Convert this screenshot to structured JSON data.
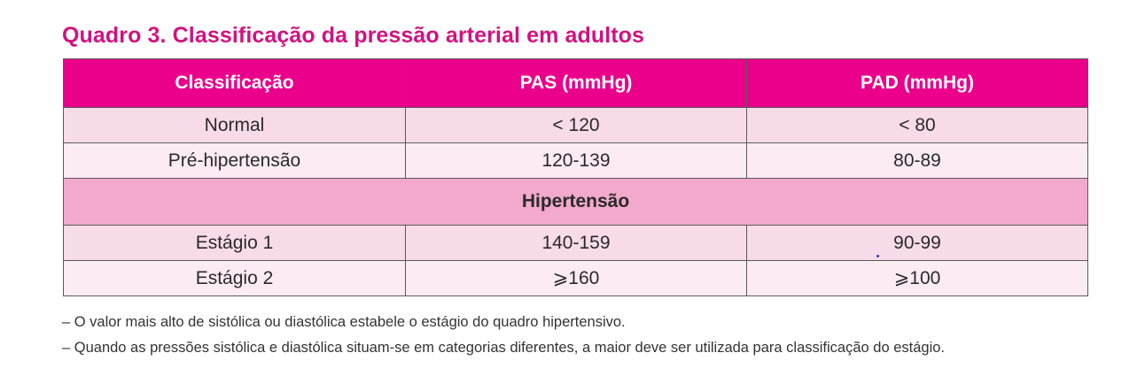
{
  "title": "Quadro 3. Classificação da pressão arterial em adultos",
  "table": {
    "headers": [
      "Classificação",
      "PAS (mmHg)",
      "PAD (mmHg)"
    ],
    "rows_top": [
      [
        "Normal",
        "< 120",
        "< 80"
      ],
      [
        "Pré-hipertensão",
        "120-139",
        "80-89"
      ]
    ],
    "subheader": "Hipertensão",
    "rows_bottom": [
      [
        "Estágio 1",
        "140-159",
        "90-99"
      ],
      [
        "Estágio 2",
        "⩾160",
        "⩾100"
      ]
    ]
  },
  "notes": [
    "– O valor mais alto de sistólica ou diastólica estabele o estágio do quadro hipertensivo.",
    "– Quando as pressões sistólica e diastólica situam-se em categorias diferentes, a maior deve ser utilizada para classificação do estágio."
  ],
  "colors": {
    "title": "#d1127f",
    "header_bg": "#ea008b",
    "row_light": "#fcebf3",
    "row_mid": "#f8dbe9",
    "subheader_bg": "#f3a9cb"
  }
}
